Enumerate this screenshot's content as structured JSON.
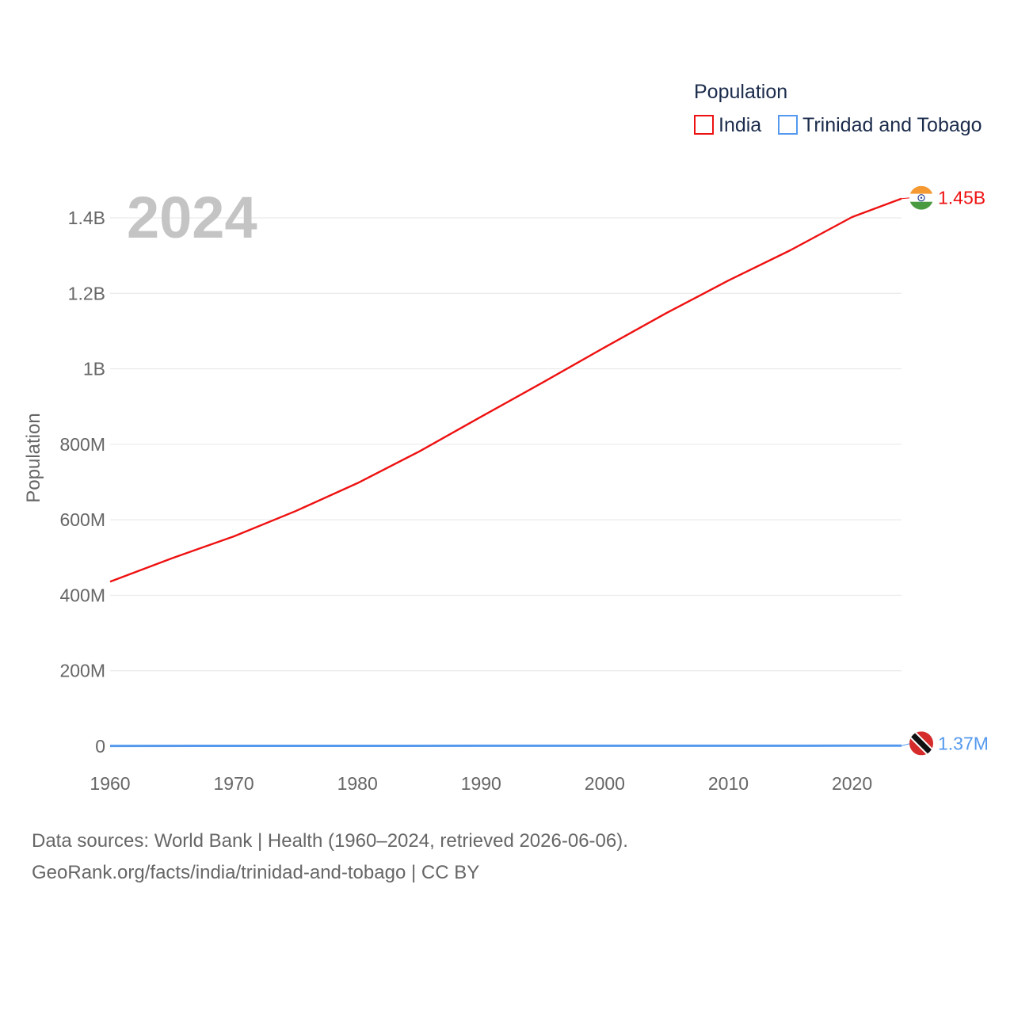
{
  "chart_data": {
    "type": "line",
    "title": "",
    "xlabel": "",
    "ylabel": "Population",
    "current_year": "2024",
    "xlim": [
      1960,
      2024
    ],
    "ylim": [
      0,
      1500000000
    ],
    "x_ticks": [
      1960,
      1970,
      1980,
      1990,
      2000,
      2010,
      2020
    ],
    "x_tick_labels": [
      "1960",
      "1970",
      "1980",
      "1990",
      "2000",
      "2010",
      "2020"
    ],
    "y_ticks": [
      0,
      200000000,
      400000000,
      600000000,
      800000000,
      1000000000,
      1200000000,
      1400000000
    ],
    "y_tick_labels": [
      "0",
      "200M",
      "400M",
      "600M",
      "800M",
      "1B",
      "1.2B",
      "1.4B"
    ],
    "grid": true,
    "legend": {
      "title": "Population",
      "position": "top-right"
    },
    "series": [
      {
        "name": "India",
        "color": "#ee1111",
        "end_label": "1.45B",
        "flag_icon": "india-flag-icon",
        "x": [
          1960,
          1965,
          1970,
          1975,
          1980,
          1985,
          1990,
          1995,
          2000,
          2005,
          2010,
          2015,
          2020,
          2024
        ],
        "values": [
          436000000,
          498000000,
          556000000,
          623000000,
          697000000,
          781000000,
          873000000,
          964000000,
          1057000000,
          1148000000,
          1234000000,
          1314000000,
          1402000000,
          1451000000
        ]
      },
      {
        "name": "Trinidad and Tobago",
        "color": "#5599ee",
        "end_label": "1.37M",
        "flag_icon": "trinidad-and-tobago-flag-icon",
        "x": [
          1960,
          1970,
          1980,
          1990,
          2000,
          2010,
          2020,
          2024
        ],
        "values": [
          848000,
          946000,
          1085000,
          1222000,
          1268000,
          1328000,
          1367000,
          1370000
        ]
      }
    ]
  },
  "source": {
    "line1": "Data sources: World Bank | Health (1960–2024, retrieved 2026-06-06).",
    "line2": "GeoRank.org/facts/india/trinidad-and-tobago | CC BY"
  }
}
